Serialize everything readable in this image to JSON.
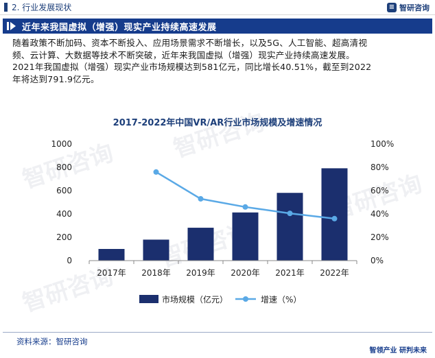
{
  "header": {
    "section": "2. 行业发展现状",
    "logo_text": "智研咨询"
  },
  "title": "近年来我国虚拟（增强）现实产业持续高速发展",
  "paragraph": [
    "随着政策不断加码、资本不断投入、应用场景需求不断增长，以及5G、人工智能、超高清视",
    "频、云计算、大数据等技术不断突破，近年来我国虚拟（增强）现实产业持续高速发展。",
    "2021年我国虚拟（增强）现实产业市场规模达到581亿元，同比增长40.51%，截至到2022",
    "年将达到791.9亿元。"
  ],
  "chart_title": "2017-2022年中国VR/AR行业市场规模及增速情况",
  "source": "资料来源：智研咨询",
  "footer_logo": "智领产业  研判未来",
  "watermark": "智研咨询",
  "colors": {
    "bar": "#1b2f6e",
    "line": "#5aa9e6",
    "accent": "#163c8c"
  },
  "chart_data": {
    "type": "bar",
    "categories": [
      "2017年",
      "2018年",
      "2019年",
      "2020年",
      "2021年",
      "2022年"
    ],
    "series": [
      {
        "name": "市场规模（亿元）",
        "type": "bar",
        "axis": "left",
        "values": [
          100,
          180,
          282,
          413,
          581,
          791.9
        ]
      },
      {
        "name": "增速（%）",
        "type": "line",
        "axis": "right",
        "values": [
          null,
          76,
          53,
          46,
          40.51,
          36
        ]
      }
    ],
    "ylim": [
      0,
      1000
    ],
    "yticks": [
      "0",
      "200",
      "400",
      "600",
      "800",
      "1000"
    ],
    "y2lim": [
      0,
      100
    ],
    "y2ticks": [
      "0%",
      "20%",
      "40%",
      "60%",
      "80%",
      "100%"
    ],
    "legend": "bottom"
  }
}
